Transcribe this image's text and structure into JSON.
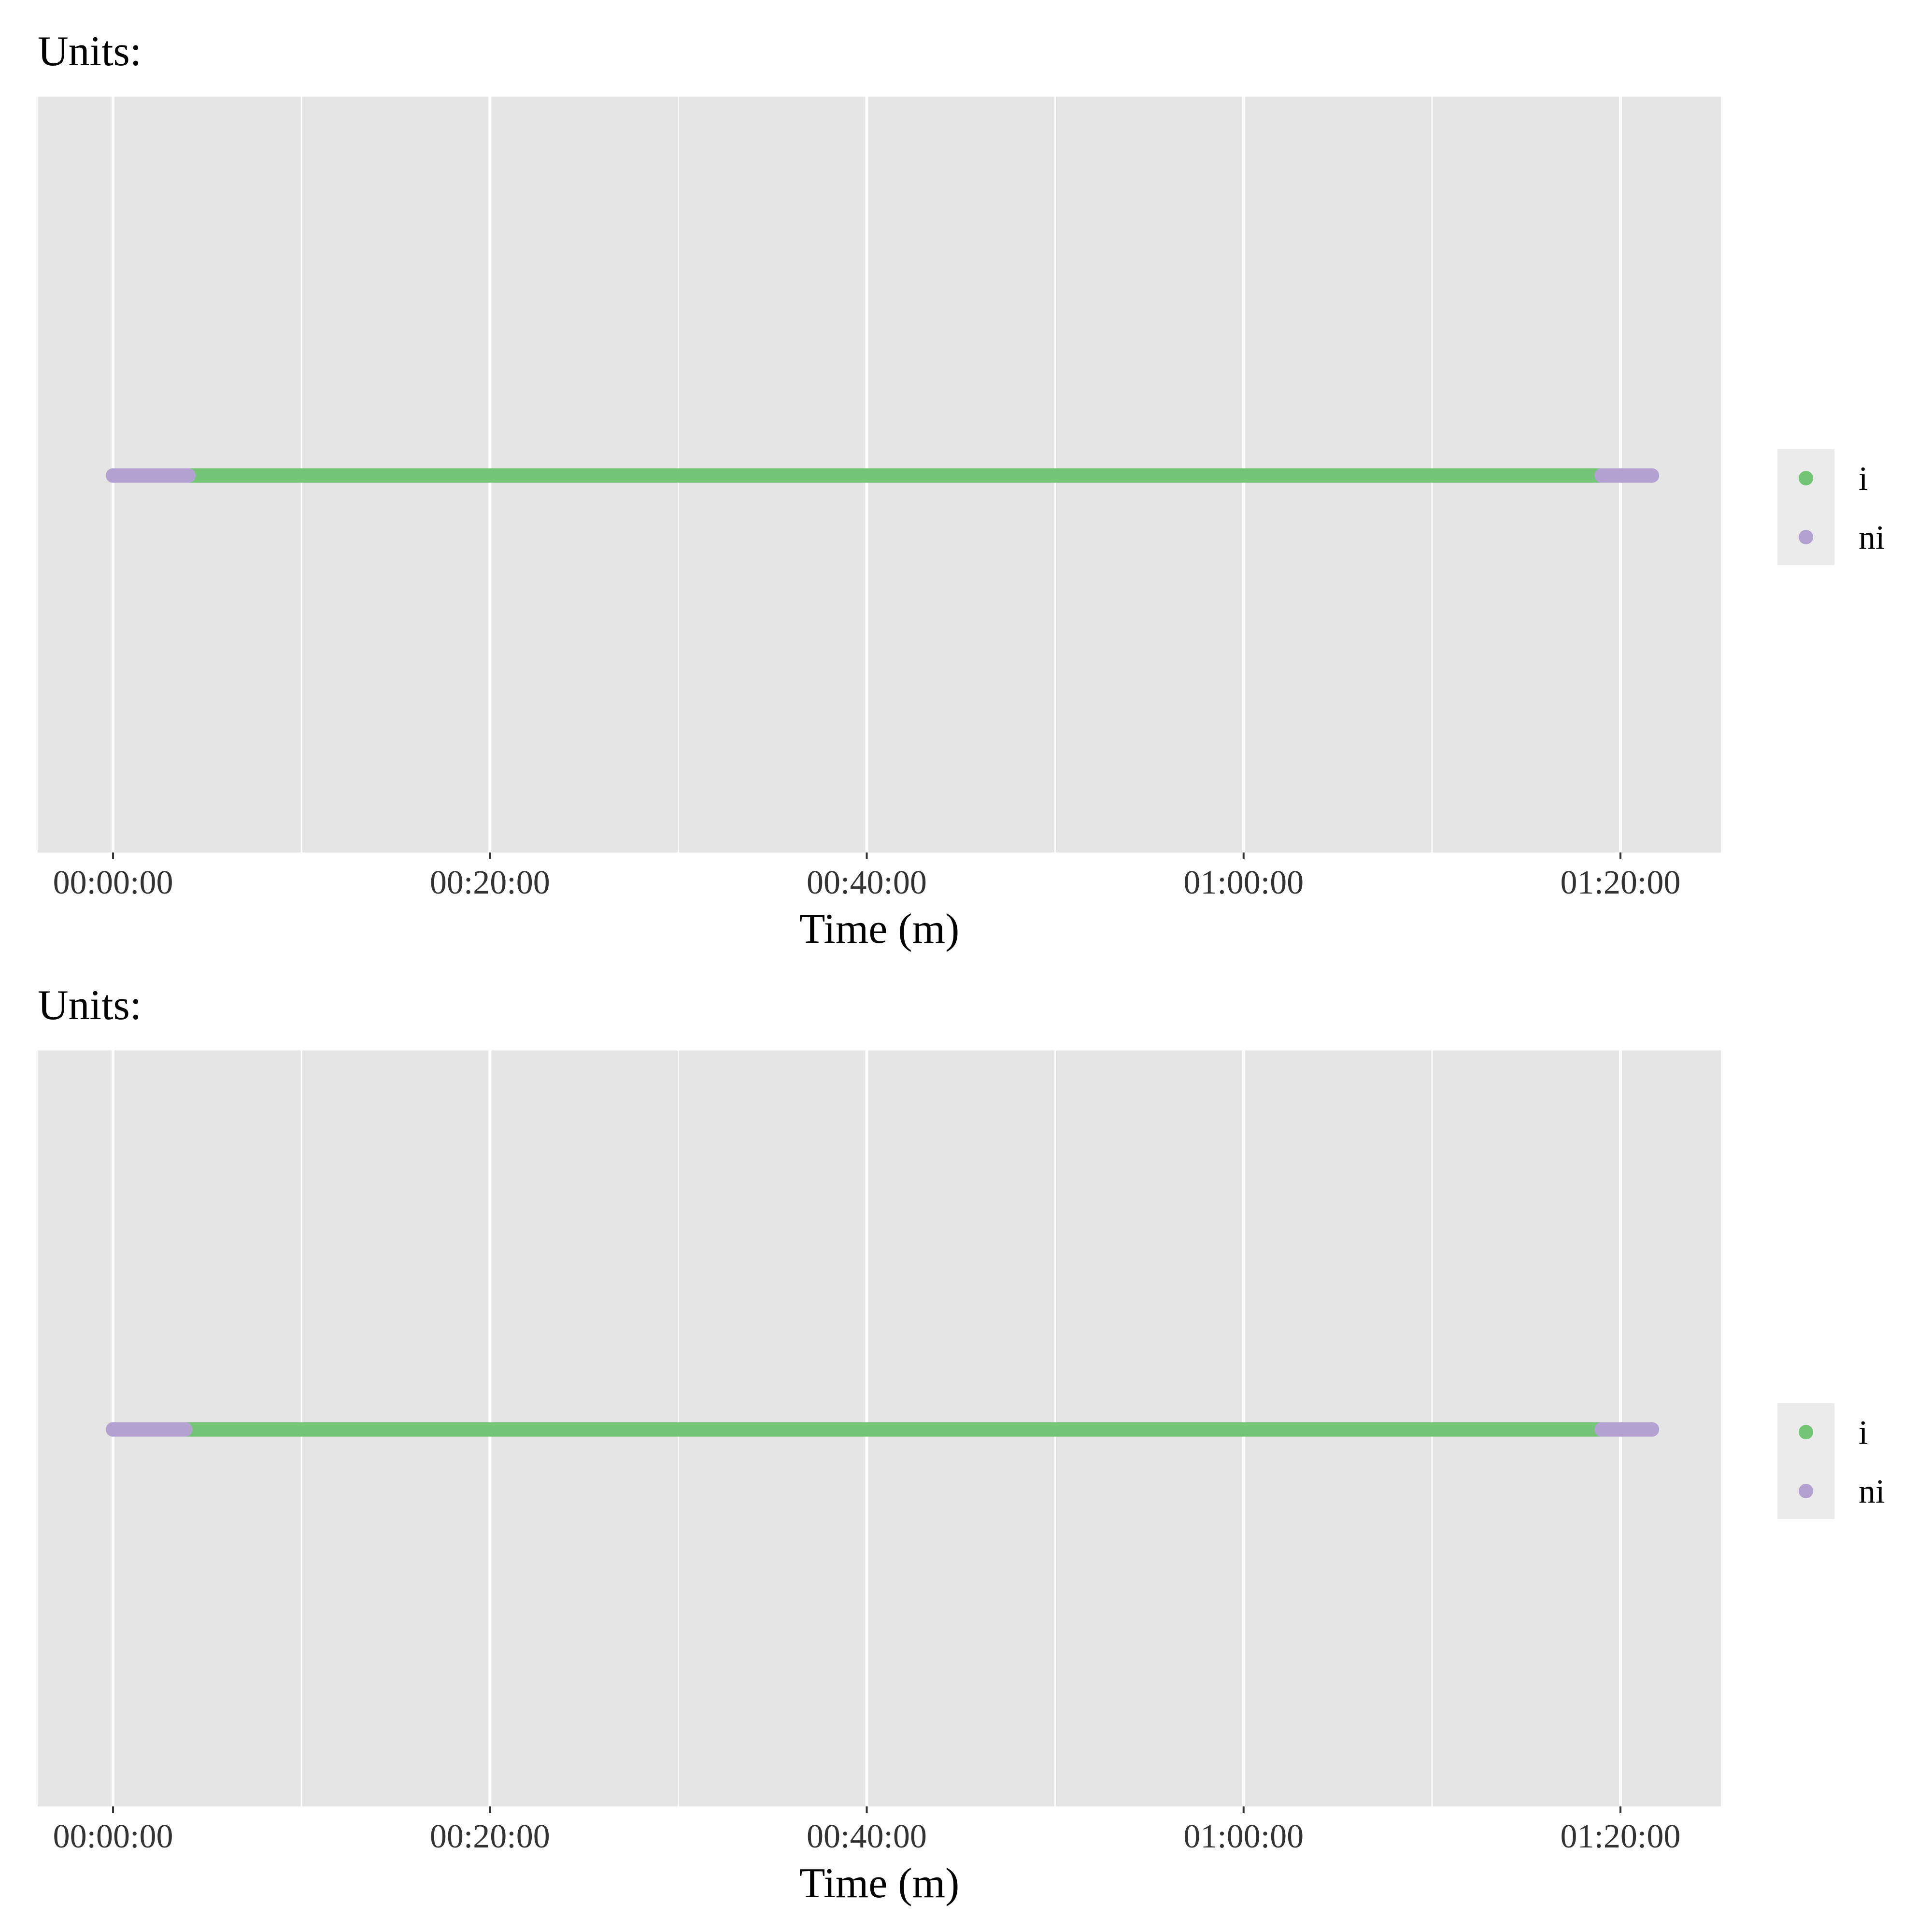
{
  "chart_data": [
    {
      "type": "scatter",
      "title": "Units:",
      "xlabel": "Time (m)",
      "ylabel": "",
      "x_unit": "time (hh:mm:ss)",
      "xlim": [
        "-00:04:00",
        "01:25:20"
      ],
      "x_ticks": [
        "00:00:00",
        "00:20:00",
        "00:40:00",
        "01:00:00",
        "01:20:00"
      ],
      "grid": true,
      "legend_position": "right",
      "legend": [
        {
          "label": "i",
          "color": "#74c476"
        },
        {
          "label": "ni",
          "color": "#b3a2d1"
        }
      ],
      "series": [
        {
          "name": "ni",
          "color": "#b3a2d1",
          "segments": [
            [
              "00:00:00",
              "00:04:00"
            ],
            [
              "01:19:00",
              "01:21:40"
            ]
          ]
        },
        {
          "name": "i",
          "color": "#74c476",
          "segments": [
            [
              "00:04:00",
              "01:19:00"
            ]
          ]
        }
      ]
    },
    {
      "type": "scatter",
      "title": "Units:",
      "xlabel": "Time (m)",
      "ylabel": "",
      "x_unit": "time (hh:mm:ss)",
      "xlim": [
        "-00:04:00",
        "01:25:20"
      ],
      "x_ticks": [
        "00:00:00",
        "00:20:00",
        "00:40:00",
        "01:00:00",
        "01:20:00"
      ],
      "grid": true,
      "legend_position": "right",
      "legend": [
        {
          "label": "i",
          "color": "#74c476"
        },
        {
          "label": "ni",
          "color": "#b3a2d1"
        }
      ],
      "series": [
        {
          "name": "ni",
          "color": "#b3a2d1",
          "segments": [
            [
              "00:00:00",
              "00:03:50"
            ],
            [
              "01:19:00",
              "01:21:40"
            ]
          ]
        },
        {
          "name": "i",
          "color": "#74c476",
          "segments": [
            [
              "00:03:50",
              "01:19:00"
            ]
          ]
        }
      ]
    }
  ]
}
